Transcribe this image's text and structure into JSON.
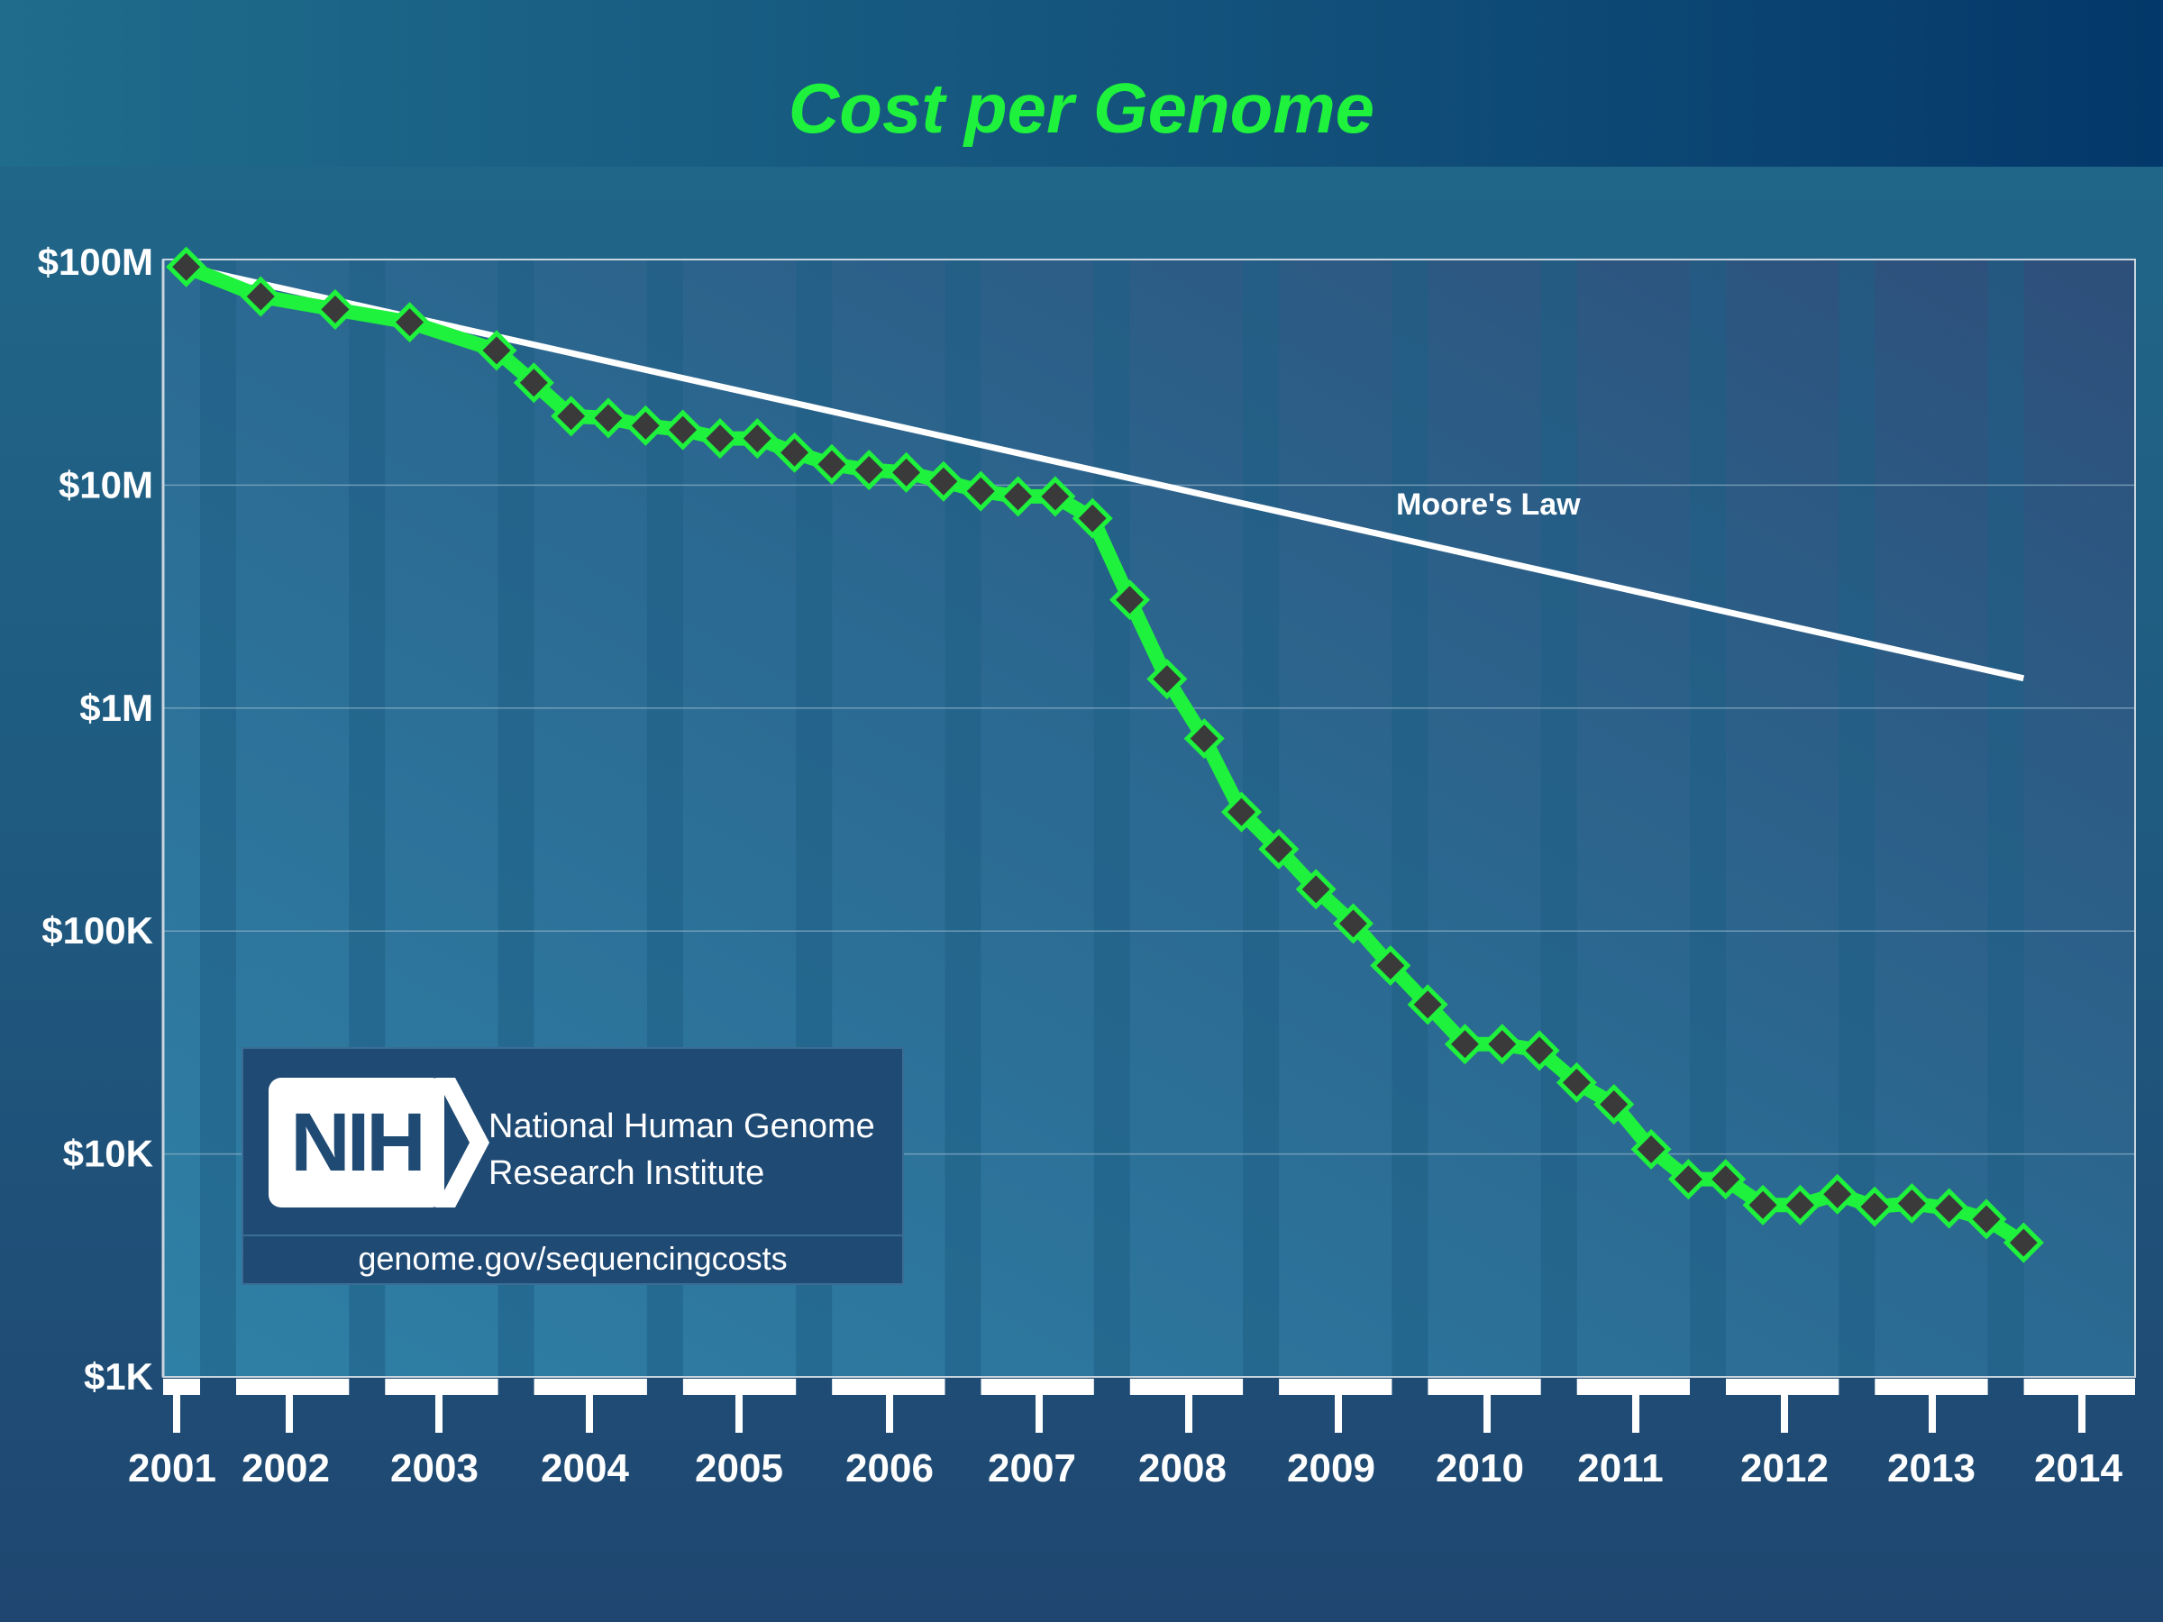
{
  "chart_data": {
    "type": "line",
    "title": "Cost per Genome",
    "xlabel": "",
    "ylabel": "",
    "y_scale": "log",
    "ylim": [
      1000,
      100000000
    ],
    "y_ticks": [
      {
        "value": 100000000,
        "label": "$100M"
      },
      {
        "value": 10000000,
        "label": "$10M"
      },
      {
        "value": 1000000,
        "label": "$1M"
      },
      {
        "value": 100000,
        "label": "$100K"
      },
      {
        "value": 10000,
        "label": "$10K"
      },
      {
        "value": 1000,
        "label": "$1K"
      }
    ],
    "x_tick_labels": [
      "2001",
      "2002",
      "2003",
      "2004",
      "2005",
      "2006",
      "2007",
      "2008",
      "2009",
      "2010",
      "2011",
      "2012",
      "2013",
      "2014"
    ],
    "grid": true,
    "series": [
      {
        "color": "#1ef23c",
        "marker": "diamond",
        "points": [
          [
            "2001-09",
            95300000
          ],
          [
            "2002-03",
            70200000
          ],
          [
            "2002-09",
            61400000
          ],
          [
            "2003-03",
            53800000
          ],
          [
            "2003-10",
            40200000
          ],
          [
            "2004-01",
            28800000
          ],
          [
            "2004-04",
            20400000
          ],
          [
            "2004-07",
            20000000
          ],
          [
            "2004-10",
            18500000
          ],
          [
            "2005-01",
            17700000
          ],
          [
            "2005-04",
            16200000
          ],
          [
            "2005-07",
            16200000
          ],
          [
            "2005-10",
            14000000
          ],
          [
            "2006-01",
            12400000
          ],
          [
            "2006-04",
            11700000
          ],
          [
            "2006-07",
            11400000
          ],
          [
            "2006-10",
            10400000
          ],
          [
            "2007-01",
            9400000
          ],
          [
            "2007-04",
            8900000
          ],
          [
            "2007-07",
            8900000
          ],
          [
            "2007-10",
            7100000
          ],
          [
            "2008-01",
            3060000
          ],
          [
            "2008-04",
            1350000
          ],
          [
            "2008-07",
            730000
          ],
          [
            "2008-10",
            342000
          ],
          [
            "2009-01",
            233000
          ],
          [
            "2009-04",
            154000
          ],
          [
            "2009-07",
            108000
          ],
          [
            "2009-10",
            70000
          ],
          [
            "2010-01",
            46800
          ],
          [
            "2010-04",
            31100
          ],
          [
            "2010-07",
            31100
          ],
          [
            "2010-10",
            29100
          ],
          [
            "2011-01",
            20900
          ],
          [
            "2011-04",
            16700
          ],
          [
            "2011-07",
            10500
          ],
          [
            "2011-10",
            7700
          ],
          [
            "2012-01",
            7700
          ],
          [
            "2012-04",
            5900
          ],
          [
            "2012-07",
            5900
          ],
          [
            "2012-10",
            6600
          ],
          [
            "2013-01",
            5800
          ],
          [
            "2013-04",
            6000
          ],
          [
            "2013-07",
            5700
          ],
          [
            "2013-10",
            5100
          ],
          [
            "2014-01",
            4000
          ]
        ]
      },
      {
        "name": "Moore's Law",
        "color": "#ffffff",
        "points": [
          [
            "2001-09",
            95300000
          ],
          [
            "2014-01",
            1360000
          ]
        ]
      }
    ],
    "annotations": [
      "Moore's Law"
    ]
  },
  "logo": {
    "badge": "NIH",
    "name_line1": "National Human Genome",
    "name_line2": "Research Institute",
    "url": "genome.gov/sequencingcosts"
  }
}
